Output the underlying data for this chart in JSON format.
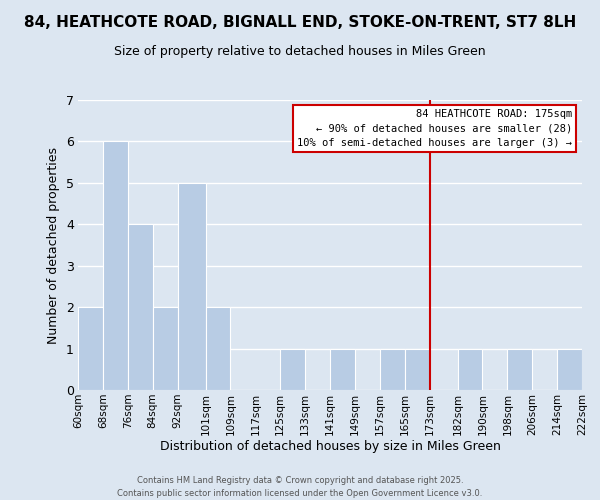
{
  "title": "84, HEATHCOTE ROAD, BIGNALL END, STOKE-ON-TRENT, ST7 8LH",
  "subtitle": "Size of property relative to detached houses in Miles Green",
  "xlabel": "Distribution of detached houses by size in Miles Green",
  "ylabel": "Number of detached properties",
  "bin_labels": [
    "60sqm",
    "68sqm",
    "76sqm",
    "84sqm",
    "92sqm",
    "101sqm",
    "109sqm",
    "117sqm",
    "125sqm",
    "133sqm",
    "141sqm",
    "149sqm",
    "157sqm",
    "165sqm",
    "173sqm",
    "182sqm",
    "190sqm",
    "198sqm",
    "206sqm",
    "214sqm",
    "222sqm"
  ],
  "bin_edges": [
    60,
    68,
    76,
    84,
    92,
    101,
    109,
    117,
    125,
    133,
    141,
    149,
    157,
    165,
    173,
    182,
    190,
    198,
    206,
    214,
    222
  ],
  "counts": [
    2,
    6,
    4,
    2,
    5,
    2,
    0,
    0,
    1,
    0,
    1,
    0,
    1,
    1,
    0,
    1,
    0,
    1,
    0,
    1
  ],
  "bar_color": "#b8cce4",
  "grid_color": "#ffffff",
  "bg_color": "#dce6f1",
  "ylim": [
    0,
    7
  ],
  "yticks": [
    0,
    1,
    2,
    3,
    4,
    5,
    6,
    7
  ],
  "property_line_x": 173,
  "property_line_color": "#cc0000",
  "annotation_title": "84 HEATHCOTE ROAD: 175sqm",
  "annotation_line1": "← 90% of detached houses are smaller (28)",
  "annotation_line2": "10% of semi-detached houses are larger (3) →",
  "annotation_box_color": "#ffffff",
  "annotation_box_edge": "#cc0000",
  "footer1": "Contains HM Land Registry data © Crown copyright and database right 2025.",
  "footer2": "Contains public sector information licensed under the Open Government Licence v3.0."
}
